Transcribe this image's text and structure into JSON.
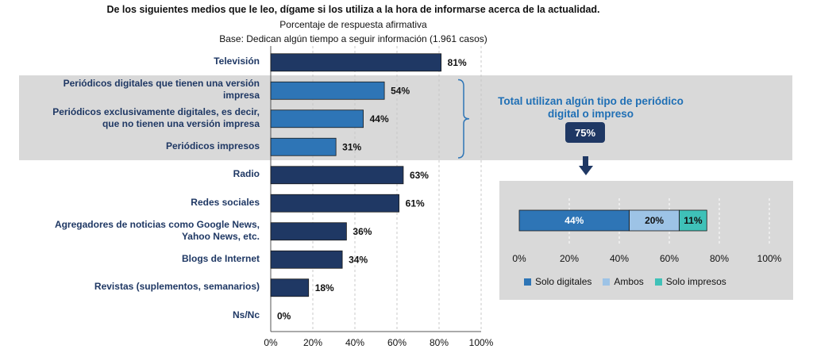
{
  "header": {
    "title": "De los siguientes medios que le leo, dígame si los utiliza a la hora de informarse acerca de la actualidad.",
    "subtitle": "Porcentaje de respuesta afirmativa",
    "base": "Base: Dedican algún tiempo a seguir información (1.961 casos)"
  },
  "colors": {
    "navy": "#1f3864",
    "blue": "#2e75b6",
    "light_blue": "#9dc3e6",
    "teal": "#3fc1b8",
    "band": "#d9d9d9"
  },
  "chart_data": [
    {
      "type": "bar",
      "orientation": "horizontal",
      "categories": [
        [
          "Televisión"
        ],
        [
          "Periódicos digitales que tienen una versión",
          "impresa"
        ],
        [
          "Periódicos exclusivamente digitales, es decir,",
          "que no tienen una versión impresa"
        ],
        [
          "Periódicos impresos"
        ],
        [
          "Radio"
        ],
        [
          "Redes sociales"
        ],
        [
          "Agregadores de noticias como Google News,",
          "Yahoo News, etc."
        ],
        [
          "Blogs de Internet"
        ],
        [
          "Revistas (suplementos, semanarios)"
        ],
        [
          "Ns/Nc"
        ]
      ],
      "values": [
        81,
        54,
        44,
        31,
        63,
        61,
        36,
        34,
        18,
        0
      ],
      "value_labels": [
        "81%",
        "54%",
        "44%",
        "31%",
        "63%",
        "61%",
        "36%",
        "34%",
        "18%",
        "0%"
      ],
      "highlight_group": [
        1,
        2,
        3
      ],
      "xlim": [
        0,
        100
      ],
      "xticks": [
        "0%",
        "20%",
        "40%",
        "60%",
        "80%",
        "100%"
      ],
      "grid": true
    },
    {
      "type": "bar",
      "orientation": "horizontal",
      "stacked": true,
      "series": [
        {
          "name": "Solo digitales",
          "value": 44,
          "label": "44%"
        },
        {
          "name": "Ambos",
          "value": 20,
          "label": "20%"
        },
        {
          "name": "Solo impresos",
          "value": 11,
          "label": "11%"
        }
      ],
      "xlim": [
        0,
        100
      ],
      "xticks": [
        "0%",
        "20%",
        "40%",
        "60%",
        "80%",
        "100%"
      ],
      "legend": "bottom",
      "grid": true
    }
  ],
  "callout": {
    "text_line1": "Total utilizan algún tipo de periódico",
    "text_line2": "digital o impreso",
    "badge": "75%"
  }
}
